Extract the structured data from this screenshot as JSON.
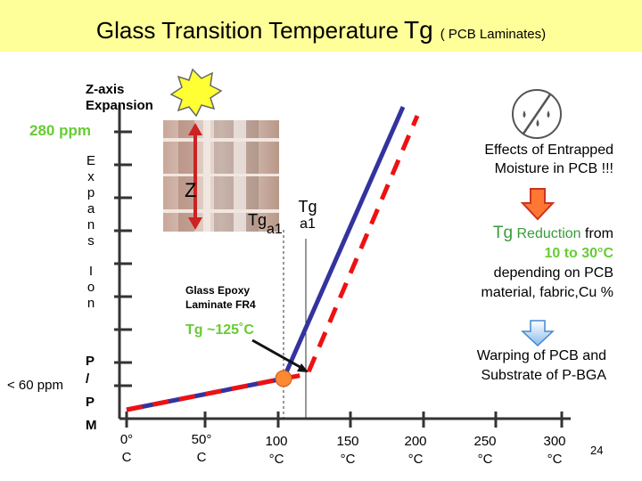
{
  "title": {
    "main": "Glass Transition Temperature",
    "symbol": "Tg",
    "suffix": "( PCB Laminates)"
  },
  "y_axis": {
    "title_line1": "Z-axis",
    "title_line2": "Expansion",
    "letters_expansion": [
      "E",
      "x",
      "p",
      "a",
      "n",
      "s"
    ],
    "letters_ion": [
      "I",
      "o",
      "n"
    ],
    "letters_ppm": [
      "P",
      "/",
      "P",
      "M"
    ],
    "top_value": "280 ppm",
    "bottom_value": "< 60 ppm"
  },
  "x_axis": {
    "ticks": [
      {
        "value": "0°",
        "unit": "C"
      },
      {
        "value": "50°",
        "unit": "C"
      },
      {
        "value": "100",
        "unit": "°C"
      },
      {
        "value": "150",
        "unit": "°C"
      },
      {
        "value": "200",
        "unit": "°C"
      },
      {
        "value": "250",
        "unit": "°C"
      },
      {
        "value": "300",
        "unit": "°C"
      }
    ]
  },
  "annotations": {
    "z_label": "Z",
    "tg_a1_left_main": "Tg",
    "tg_a1_left_sub": "a1",
    "tg_a1_right_main": "Tg",
    "tg_a1_right_sub": "a1",
    "material_line1": "Glass Epoxy",
    "material_line2": "Laminate FR4",
    "tg_value": "Tg ~125˚C",
    "moisture_line1": "Effects of Entrapped",
    "moisture_line2": "Moisture in PCB !!!",
    "reduction_word1": "Tg",
    "reduction_word2": "Reduction",
    "reduction_word3": "from",
    "reduction_range": "10 to 30°C",
    "reduction_line3": "depending on PCB",
    "reduction_line4": "material, fabric,Cu %",
    "warping_line1": "Warping of PCB and",
    "warping_line2": "Substrate of P-BGA"
  },
  "page_number": "24",
  "colors": {
    "title_bg": "#ffff99",
    "green_label": "#66cc33",
    "axis": "#333333",
    "blue_curve": "#3333a0",
    "red_dashed": "#ee1111",
    "orange_point": "#ff8833",
    "starburst": "#ffff33",
    "arrow_red": "#cc3322",
    "arrow_orange": "#ff7733",
    "arrow_blue": "#99ccff"
  }
}
